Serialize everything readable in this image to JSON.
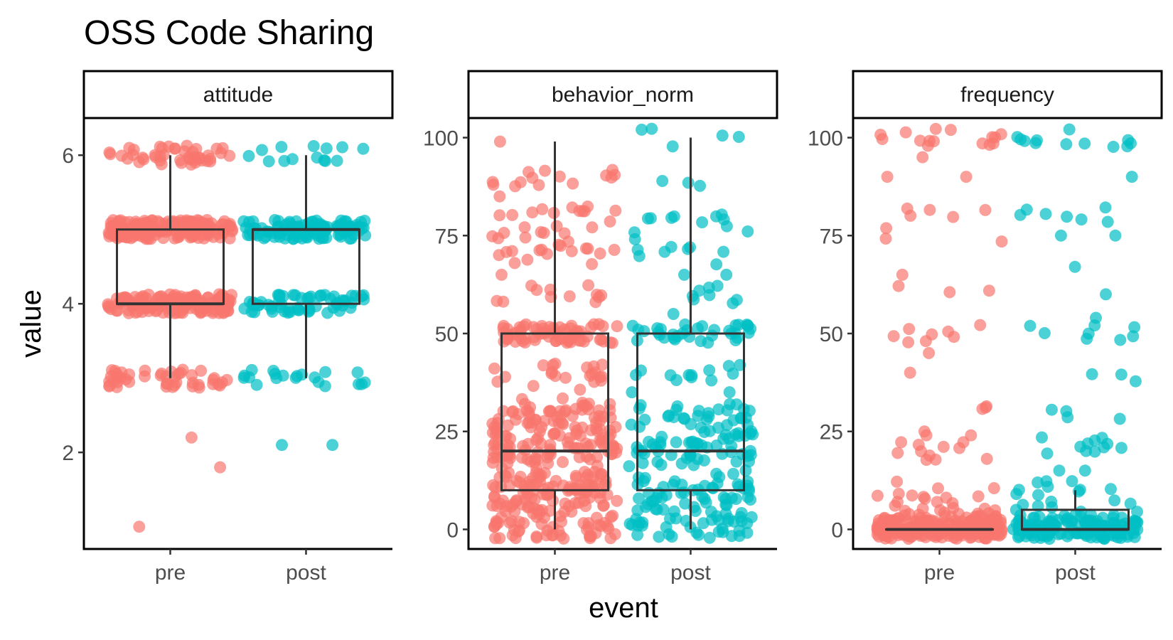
{
  "chart_data": {
    "type": "scatter",
    "subtype": "boxplot with jittered points, faceted",
    "title": "OSS Code Sharing",
    "xlabel": "event",
    "ylabel": "value",
    "categories": [
      "pre",
      "post"
    ],
    "colors": {
      "pre": "#F8766D",
      "post": "#00BFC4"
    },
    "point_alpha": 0.7,
    "legend": "none",
    "grid": false,
    "facets": [
      {
        "name": "attitude",
        "ylim": [
          0.7,
          6.5
        ],
        "yticks": [
          2,
          4,
          6
        ],
        "boxes": [
          {
            "group": "pre",
            "min": 3.0,
            "q1": 4.0,
            "median": 4.0,
            "q3": 5.0,
            "max": 6.0
          },
          {
            "group": "post",
            "min": 3.0,
            "q1": 4.0,
            "median": 5.0,
            "q3": 5.0,
            "max": 6.0
          }
        ],
        "points": {
          "pre": [
            {
              "v": 6,
              "n": 45
            },
            {
              "v": 5,
              "n": 170
            },
            {
              "v": 4,
              "n": 150
            },
            {
              "v": 3,
              "n": 45
            },
            {
              "v": 2.2,
              "n": 1
            },
            {
              "v": 1.8,
              "n": 1
            },
            {
              "v": 1,
              "n": 1
            }
          ],
          "post": [
            {
              "v": 6,
              "n": 14
            },
            {
              "v": 5,
              "n": 100
            },
            {
              "v": 4,
              "n": 60
            },
            {
              "v": 3,
              "n": 20
            },
            {
              "v": 2.1,
              "n": 2
            }
          ]
        }
      },
      {
        "name": "behavior_norm",
        "ylim": [
          -5,
          105
        ],
        "yticks": [
          0,
          25,
          50,
          75,
          100
        ],
        "boxes": [
          {
            "group": "pre",
            "min": 0,
            "q1": 10,
            "median": 20,
            "q3": 50,
            "max": 99
          },
          {
            "group": "post",
            "min": 0,
            "q1": 10,
            "median": 20,
            "q3": 50,
            "max": 100
          }
        ],
        "points": {
          "pre": [
            {
              "v": 0,
              "n": 45
            },
            {
              "v": 5,
              "n": 40
            },
            {
              "v": 10,
              "n": 55
            },
            {
              "v": 15,
              "n": 30
            },
            {
              "v": 20,
              "n": 55
            },
            {
              "v": 25,
              "n": 45
            },
            {
              "v": 30,
              "n": 40
            },
            {
              "v": 35,
              "n": 4
            },
            {
              "v": 40,
              "n": 20
            },
            {
              "v": 50,
              "n": 70
            },
            {
              "v": 60,
              "n": 12
            },
            {
              "v": 65,
              "n": 1
            },
            {
              "v": 70,
              "n": 15
            },
            {
              "v": 75,
              "n": 12
            },
            {
              "v": 80,
              "n": 12
            },
            {
              "v": 85,
              "n": 1
            },
            {
              "v": 90,
              "n": 14
            },
            {
              "v": 99,
              "n": 1
            }
          ],
          "post": [
            {
              "v": 0,
              "n": 30
            },
            {
              "v": 5,
              "n": 25
            },
            {
              "v": 10,
              "n": 35
            },
            {
              "v": 15,
              "n": 14
            },
            {
              "v": 20,
              "n": 35
            },
            {
              "v": 25,
              "n": 20
            },
            {
              "v": 30,
              "n": 25
            },
            {
              "v": 35,
              "n": 2
            },
            {
              "v": 40,
              "n": 12
            },
            {
              "v": 50,
              "n": 35
            },
            {
              "v": 55,
              "n": 1
            },
            {
              "v": 60,
              "n": 8
            },
            {
              "v": 65,
              "n": 2
            },
            {
              "v": 70,
              "n": 8
            },
            {
              "v": 75,
              "n": 4
            },
            {
              "v": 80,
              "n": 8
            },
            {
              "v": 90,
              "n": 3
            },
            {
              "v": 100,
              "n": 5
            }
          ]
        }
      },
      {
        "name": "frequency",
        "ylim": [
          -5,
          105
        ],
        "yticks": [
          0,
          25,
          50,
          75,
          100
        ],
        "boxes": [
          {
            "group": "pre",
            "min": 0,
            "q1": 0,
            "median": 0,
            "q3": 0,
            "max": 0
          },
          {
            "group": "post",
            "min": 0,
            "q1": 0,
            "median": 0,
            "q3": 5,
            "max": 10
          }
        ],
        "points": {
          "pre": [
            {
              "v": 0,
              "n": 170
            },
            {
              "v": 1,
              "n": 25
            },
            {
              "v": 2,
              "n": 20
            },
            {
              "v": 3,
              "n": 12
            },
            {
              "v": 5,
              "n": 12
            },
            {
              "v": 7,
              "n": 2
            },
            {
              "v": 10,
              "n": 10
            },
            {
              "v": 18,
              "n": 1
            },
            {
              "v": 20,
              "n": 10
            },
            {
              "v": 24,
              "n": 2
            },
            {
              "v": 25,
              "n": 1
            },
            {
              "v": 30,
              "n": 3
            },
            {
              "v": 40,
              "n": 1
            },
            {
              "v": 45,
              "n": 1
            },
            {
              "v": 50,
              "n": 8
            },
            {
              "v": 60,
              "n": 3
            },
            {
              "v": 65,
              "n": 1
            },
            {
              "v": 75,
              "n": 3
            },
            {
              "v": 80,
              "n": 5
            },
            {
              "v": 90,
              "n": 2
            },
            {
              "v": 95,
              "n": 1
            },
            {
              "v": 100,
              "n": 15
            }
          ],
          "post": [
            {
              "v": 0,
              "n": 110
            },
            {
              "v": 1,
              "n": 12
            },
            {
              "v": 2,
              "n": 10
            },
            {
              "v": 3,
              "n": 6
            },
            {
              "v": 5,
              "n": 10
            },
            {
              "v": 10,
              "n": 10
            },
            {
              "v": 15,
              "n": 2
            },
            {
              "v": 20,
              "n": 8
            },
            {
              "v": 25,
              "n": 3
            },
            {
              "v": 30,
              "n": 4
            },
            {
              "v": 40,
              "n": 3
            },
            {
              "v": 50,
              "n": 8
            },
            {
              "v": 54,
              "n": 1
            },
            {
              "v": 60,
              "n": 1
            },
            {
              "v": 67,
              "n": 1
            },
            {
              "v": 75,
              "n": 2
            },
            {
              "v": 80,
              "n": 7
            },
            {
              "v": 90,
              "n": 1
            },
            {
              "v": 100,
              "n": 12
            }
          ]
        }
      }
    ]
  }
}
